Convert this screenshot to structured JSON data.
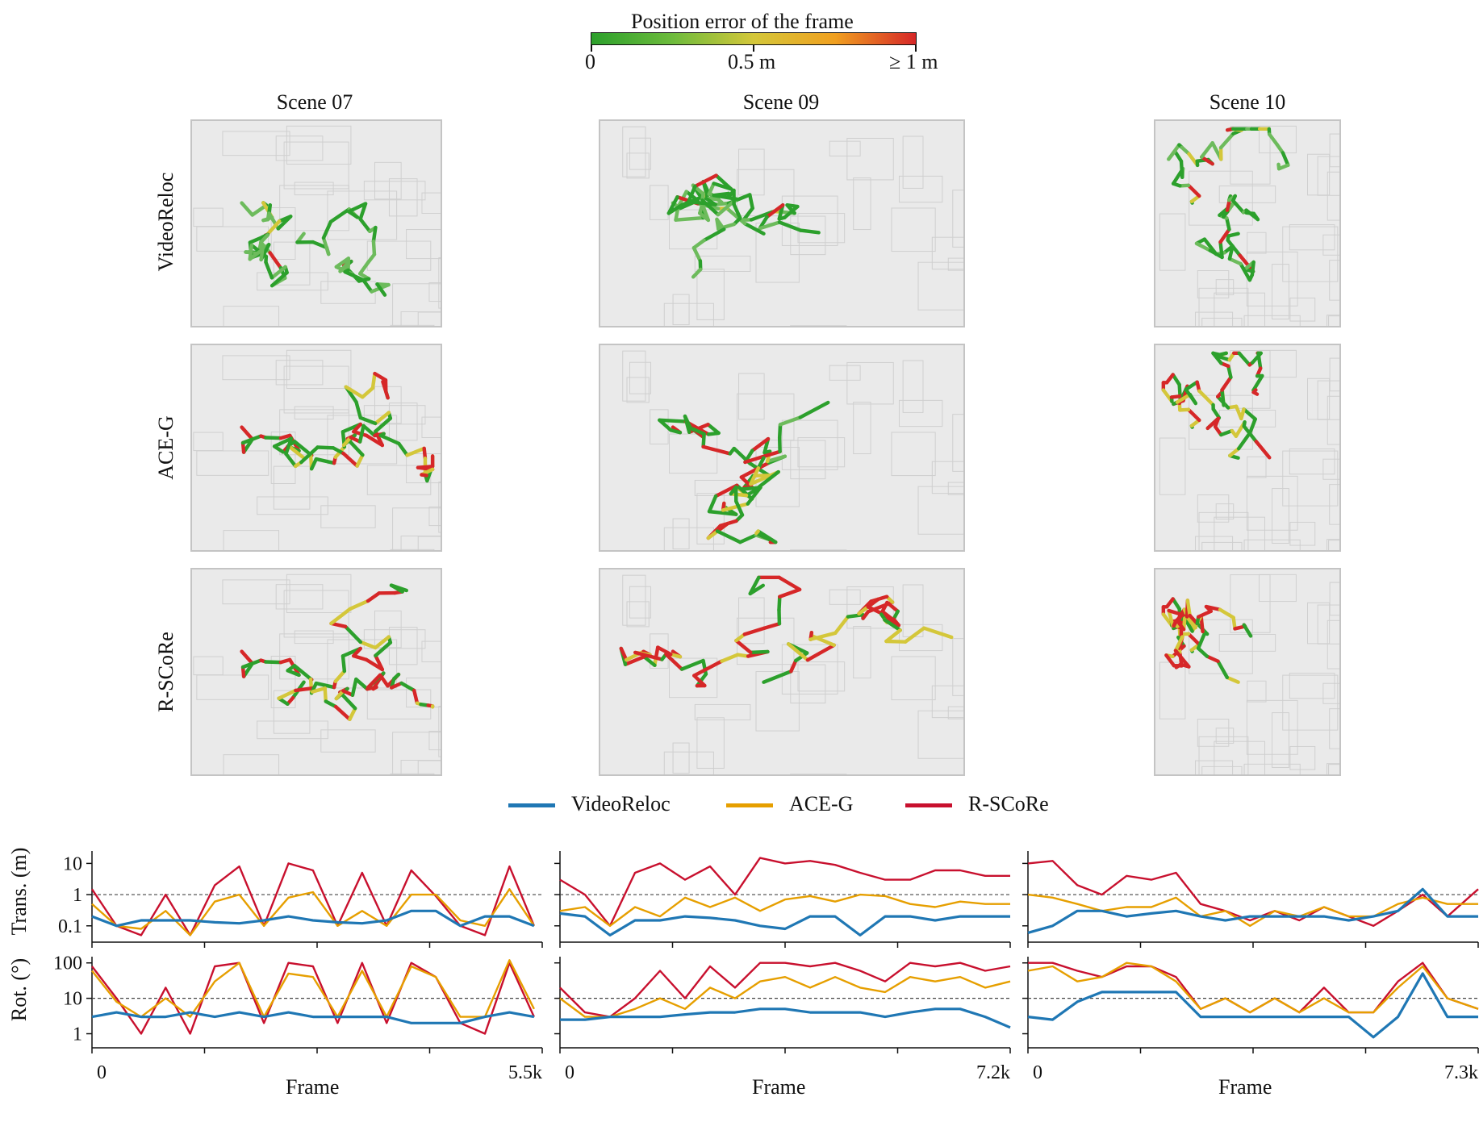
{
  "colorbar": {
    "title": "Position error of the frame",
    "ticks": [
      "0",
      "0.5 m",
      "≥ 1 m"
    ],
    "colors": [
      "#2ca02c",
      "#d4c73a",
      "#f0a020",
      "#d62728"
    ]
  },
  "scenes": [
    "Scene 07",
    "Scene 09",
    "Scene 10"
  ],
  "methods": [
    "VideoReloc",
    "ACE-G",
    "R-SCoRe"
  ],
  "legend": [
    {
      "label": "VideoReloc",
      "color": "#1f77b4"
    },
    {
      "label": "ACE-G",
      "color": "#e69f00"
    },
    {
      "label": "R-SCoRe",
      "color": "#c8102e"
    }
  ],
  "colors": {
    "videoreloc": "#1f77b4",
    "aceg": "#e69f00",
    "rscore": "#c8102e",
    "threshold": "#444444"
  },
  "chart_data": [
    {
      "type": "line",
      "scene": "Scene 07",
      "ylabel": "Trans. (m)",
      "xlabel": "Frame",
      "x_tick_labels": [
        "0",
        "5.5k"
      ],
      "xlim": [
        0,
        5500
      ],
      "yscale": "log",
      "y_tick_labels": [
        "0.1",
        "1",
        "10"
      ],
      "ylim": [
        0.03,
        25
      ],
      "threshold": 1,
      "series": [
        {
          "name": "VideoReloc",
          "x": [
            0,
            300,
            600,
            900,
            1200,
            1500,
            1800,
            2100,
            2400,
            2700,
            3000,
            3300,
            3600,
            3900,
            4200,
            4500,
            4800,
            5100,
            5400
          ],
          "values": [
            0.2,
            0.1,
            0.15,
            0.15,
            0.15,
            0.13,
            0.12,
            0.15,
            0.2,
            0.15,
            0.13,
            0.12,
            0.15,
            0.3,
            0.3,
            0.1,
            0.2,
            0.2,
            0.1
          ]
        },
        {
          "name": "ACE-G",
          "x": [
            0,
            300,
            600,
            900,
            1200,
            1500,
            1800,
            2100,
            2400,
            2700,
            3000,
            3300,
            3600,
            3900,
            4200,
            4500,
            4800,
            5100,
            5400
          ],
          "values": [
            0.5,
            0.1,
            0.08,
            0.3,
            0.05,
            0.6,
            1.0,
            0.1,
            0.8,
            1.2,
            0.1,
            0.3,
            0.1,
            1.0,
            1.0,
            0.15,
            0.1,
            1.5,
            0.1
          ]
        },
        {
          "name": "R-SCoRe",
          "x": [
            0,
            300,
            600,
            900,
            1200,
            1500,
            1800,
            2100,
            2400,
            2700,
            3000,
            3300,
            3600,
            3900,
            4200,
            4500,
            4800,
            5100,
            5400
          ],
          "values": [
            1.5,
            0.1,
            0.05,
            1.0,
            0.05,
            2.0,
            8.0,
            0.1,
            10.0,
            6.0,
            0.1,
            5.0,
            0.1,
            6.0,
            0.9,
            0.1,
            0.05,
            8.0,
            0.1
          ]
        }
      ]
    },
    {
      "type": "line",
      "scene": "Scene 07",
      "ylabel": "Rot. (°)",
      "xlabel": "Frame",
      "x_tick_labels": [
        "0",
        "5.5k"
      ],
      "xlim": [
        0,
        5500
      ],
      "yscale": "log",
      "y_tick_labels": [
        "1",
        "10",
        "100"
      ],
      "ylim": [
        0.4,
        150
      ],
      "threshold": 10,
      "series": [
        {
          "name": "VideoReloc",
          "x": [
            0,
            300,
            600,
            900,
            1200,
            1500,
            1800,
            2100,
            2400,
            2700,
            3000,
            3300,
            3600,
            3900,
            4200,
            4500,
            4800,
            5100,
            5400
          ],
          "values": [
            3,
            4,
            3,
            3,
            4,
            3,
            4,
            3,
            4,
            3,
            3,
            3,
            3,
            2,
            2,
            2,
            3,
            4,
            3
          ]
        },
        {
          "name": "ACE-G",
          "x": [
            0,
            300,
            600,
            900,
            1200,
            1500,
            1800,
            2100,
            2400,
            2700,
            3000,
            3300,
            3600,
            3900,
            4200,
            4500,
            4800,
            5100,
            5400
          ],
          "values": [
            60,
            8,
            3,
            10,
            3,
            30,
            100,
            3,
            50,
            40,
            3,
            60,
            3,
            80,
            40,
            3,
            3,
            120,
            5
          ]
        },
        {
          "name": "R-SCoRe",
          "x": [
            0,
            300,
            600,
            900,
            1200,
            1500,
            1800,
            2100,
            2400,
            2700,
            3000,
            3300,
            3600,
            3900,
            4200,
            4500,
            4800,
            5100,
            5400
          ],
          "values": [
            80,
            10,
            1,
            20,
            1,
            80,
            100,
            2,
            100,
            80,
            2,
            100,
            2,
            100,
            40,
            2,
            1,
            100,
            3
          ]
        }
      ]
    },
    {
      "type": "line",
      "scene": "Scene 09",
      "ylabel": "Trans. (m)",
      "xlabel": "Frame",
      "x_tick_labels": [
        "0",
        "7.2k"
      ],
      "xlim": [
        0,
        7200
      ],
      "yscale": "log",
      "y_tick_labels": [
        "0.1",
        "1",
        "10"
      ],
      "ylim": [
        0.03,
        25
      ],
      "threshold": 1,
      "series": [
        {
          "name": "VideoReloc",
          "x": [
            0,
            400,
            800,
            1200,
            1600,
            2000,
            2400,
            2800,
            3200,
            3600,
            4000,
            4400,
            4800,
            5200,
            5600,
            6000,
            6400,
            6800,
            7200
          ],
          "values": [
            0.25,
            0.2,
            0.05,
            0.15,
            0.15,
            0.2,
            0.18,
            0.15,
            0.1,
            0.08,
            0.2,
            0.2,
            0.05,
            0.2,
            0.2,
            0.15,
            0.2,
            0.2,
            0.2
          ]
        },
        {
          "name": "ACE-G",
          "x": [
            0,
            400,
            800,
            1200,
            1600,
            2000,
            2400,
            2800,
            3200,
            3600,
            4000,
            4400,
            4800,
            5200,
            5600,
            6000,
            6400,
            6800,
            7200
          ],
          "values": [
            0.3,
            0.4,
            0.1,
            0.4,
            0.2,
            0.8,
            0.4,
            0.8,
            0.3,
            0.7,
            0.9,
            0.6,
            1.0,
            0.9,
            0.5,
            0.4,
            0.6,
            0.5,
            0.5
          ]
        },
        {
          "name": "R-SCoRe",
          "x": [
            0,
            400,
            800,
            1200,
            1600,
            2000,
            2400,
            2800,
            3200,
            3600,
            4000,
            4400,
            4800,
            5200,
            5600,
            6000,
            6400,
            6800,
            7200
          ],
          "values": [
            3,
            1,
            0.1,
            5,
            10,
            3,
            8,
            1,
            15,
            10,
            12,
            9,
            5,
            3,
            3,
            6,
            6,
            4,
            4
          ]
        }
      ]
    },
    {
      "type": "line",
      "scene": "Scene 09",
      "ylabel": "Rot. (°)",
      "xlabel": "Frame",
      "x_tick_labels": [
        "0",
        "7.2k"
      ],
      "xlim": [
        0,
        7200
      ],
      "yscale": "log",
      "y_tick_labels": [
        "1",
        "10",
        "100"
      ],
      "ylim": [
        0.4,
        150
      ],
      "threshold": 10,
      "series": [
        {
          "name": "VideoReloc",
          "x": [
            0,
            400,
            800,
            1200,
            1600,
            2000,
            2400,
            2800,
            3200,
            3600,
            4000,
            4400,
            4800,
            5200,
            5600,
            6000,
            6400,
            6800,
            7200
          ],
          "values": [
            2.5,
            2.5,
            3,
            3,
            3,
            3.5,
            4,
            4,
            5,
            5,
            4,
            4,
            4,
            3,
            4,
            5,
            5,
            3,
            1.5
          ]
        },
        {
          "name": "ACE-G",
          "x": [
            0,
            400,
            800,
            1200,
            1600,
            2000,
            2400,
            2800,
            3200,
            3600,
            4000,
            4400,
            4800,
            5200,
            5600,
            6000,
            6400,
            6800,
            7200
          ],
          "values": [
            10,
            3,
            3,
            5,
            10,
            5,
            20,
            10,
            30,
            40,
            20,
            40,
            20,
            15,
            40,
            30,
            40,
            20,
            30
          ]
        },
        {
          "name": "R-SCoRe",
          "x": [
            0,
            400,
            800,
            1200,
            1600,
            2000,
            2400,
            2800,
            3200,
            3600,
            4000,
            4400,
            4800,
            5200,
            5600,
            6000,
            6400,
            6800,
            7200
          ],
          "values": [
            20,
            4,
            3,
            10,
            60,
            10,
            80,
            20,
            100,
            100,
            80,
            100,
            60,
            30,
            100,
            80,
            100,
            60,
            80
          ]
        }
      ]
    },
    {
      "type": "line",
      "scene": "Scene 10",
      "ylabel": "Trans. (m)",
      "xlabel": "Frame",
      "x_tick_labels": [
        "0",
        "7.3k"
      ],
      "xlim": [
        0,
        7300
      ],
      "yscale": "log",
      "y_tick_labels": [
        "0.1",
        "1",
        "10"
      ],
      "ylim": [
        0.03,
        25
      ],
      "threshold": 1,
      "series": [
        {
          "name": "VideoReloc",
          "x": [
            0,
            400,
            800,
            1200,
            1600,
            2000,
            2400,
            2800,
            3200,
            3600,
            4000,
            4400,
            4800,
            5200,
            5600,
            6000,
            6400,
            6800,
            7300
          ],
          "values": [
            0.06,
            0.1,
            0.3,
            0.3,
            0.2,
            0.25,
            0.3,
            0.2,
            0.15,
            0.2,
            0.2,
            0.2,
            0.2,
            0.15,
            0.2,
            0.3,
            1.5,
            0.2,
            0.2
          ]
        },
        {
          "name": "ACE-G",
          "x": [
            0,
            400,
            800,
            1200,
            1600,
            2000,
            2400,
            2800,
            3200,
            3600,
            4000,
            4400,
            4800,
            5200,
            5600,
            6000,
            6400,
            6800,
            7300
          ],
          "values": [
            1.0,
            0.8,
            0.5,
            0.3,
            0.4,
            0.4,
            0.8,
            0.2,
            0.3,
            0.1,
            0.3,
            0.2,
            0.4,
            0.2,
            0.2,
            0.5,
            0.8,
            0.5,
            0.5
          ]
        },
        {
          "name": "R-SCoRe",
          "x": [
            0,
            400,
            800,
            1200,
            1600,
            2000,
            2400,
            2800,
            3200,
            3600,
            4000,
            4400,
            4800,
            5200,
            5600,
            6000,
            6400,
            6800,
            7300
          ],
          "values": [
            10,
            12,
            2,
            1,
            4,
            3,
            5,
            0.5,
            0.3,
            0.15,
            0.3,
            0.15,
            0.4,
            0.2,
            0.1,
            0.3,
            1.0,
            0.2,
            1.5
          ]
        }
      ]
    },
    {
      "type": "line",
      "scene": "Scene 10",
      "ylabel": "Rot. (°)",
      "xlabel": "Frame",
      "x_tick_labels": [
        "0",
        "7.3k"
      ],
      "xlim": [
        0,
        7300
      ],
      "yscale": "log",
      "y_tick_labels": [
        "1",
        "10",
        "100"
      ],
      "ylim": [
        0.4,
        150
      ],
      "threshold": 10,
      "series": [
        {
          "name": "VideoReloc",
          "x": [
            0,
            400,
            800,
            1200,
            1600,
            2000,
            2400,
            2800,
            3200,
            3600,
            4000,
            4400,
            4800,
            5200,
            5600,
            6000,
            6400,
            6800,
            7300
          ],
          "values": [
            3,
            2.5,
            8,
            15,
            15,
            15,
            15,
            3,
            3,
            3,
            3,
            3,
            3,
            3,
            0.8,
            3,
            50,
            3,
            3
          ]
        },
        {
          "name": "ACE-G",
          "x": [
            0,
            400,
            800,
            1200,
            1600,
            2000,
            2400,
            2800,
            3200,
            3600,
            4000,
            4400,
            4800,
            5200,
            5600,
            6000,
            6400,
            6800,
            7300
          ],
          "values": [
            60,
            80,
            30,
            40,
            100,
            80,
            30,
            5,
            10,
            4,
            10,
            4,
            10,
            4,
            4,
            20,
            80,
            10,
            5
          ]
        },
        {
          "name": "R-SCoRe",
          "x": [
            0,
            400,
            800,
            1200,
            1600,
            2000,
            2400,
            2800,
            3200,
            3600,
            4000,
            4400,
            4800,
            5200,
            5600,
            6000,
            6400,
            6800,
            7300
          ],
          "values": [
            100,
            100,
            60,
            40,
            80,
            80,
            40,
            5,
            10,
            4,
            10,
            4,
            20,
            4,
            4,
            30,
            100,
            10,
            5
          ]
        }
      ]
    }
  ]
}
